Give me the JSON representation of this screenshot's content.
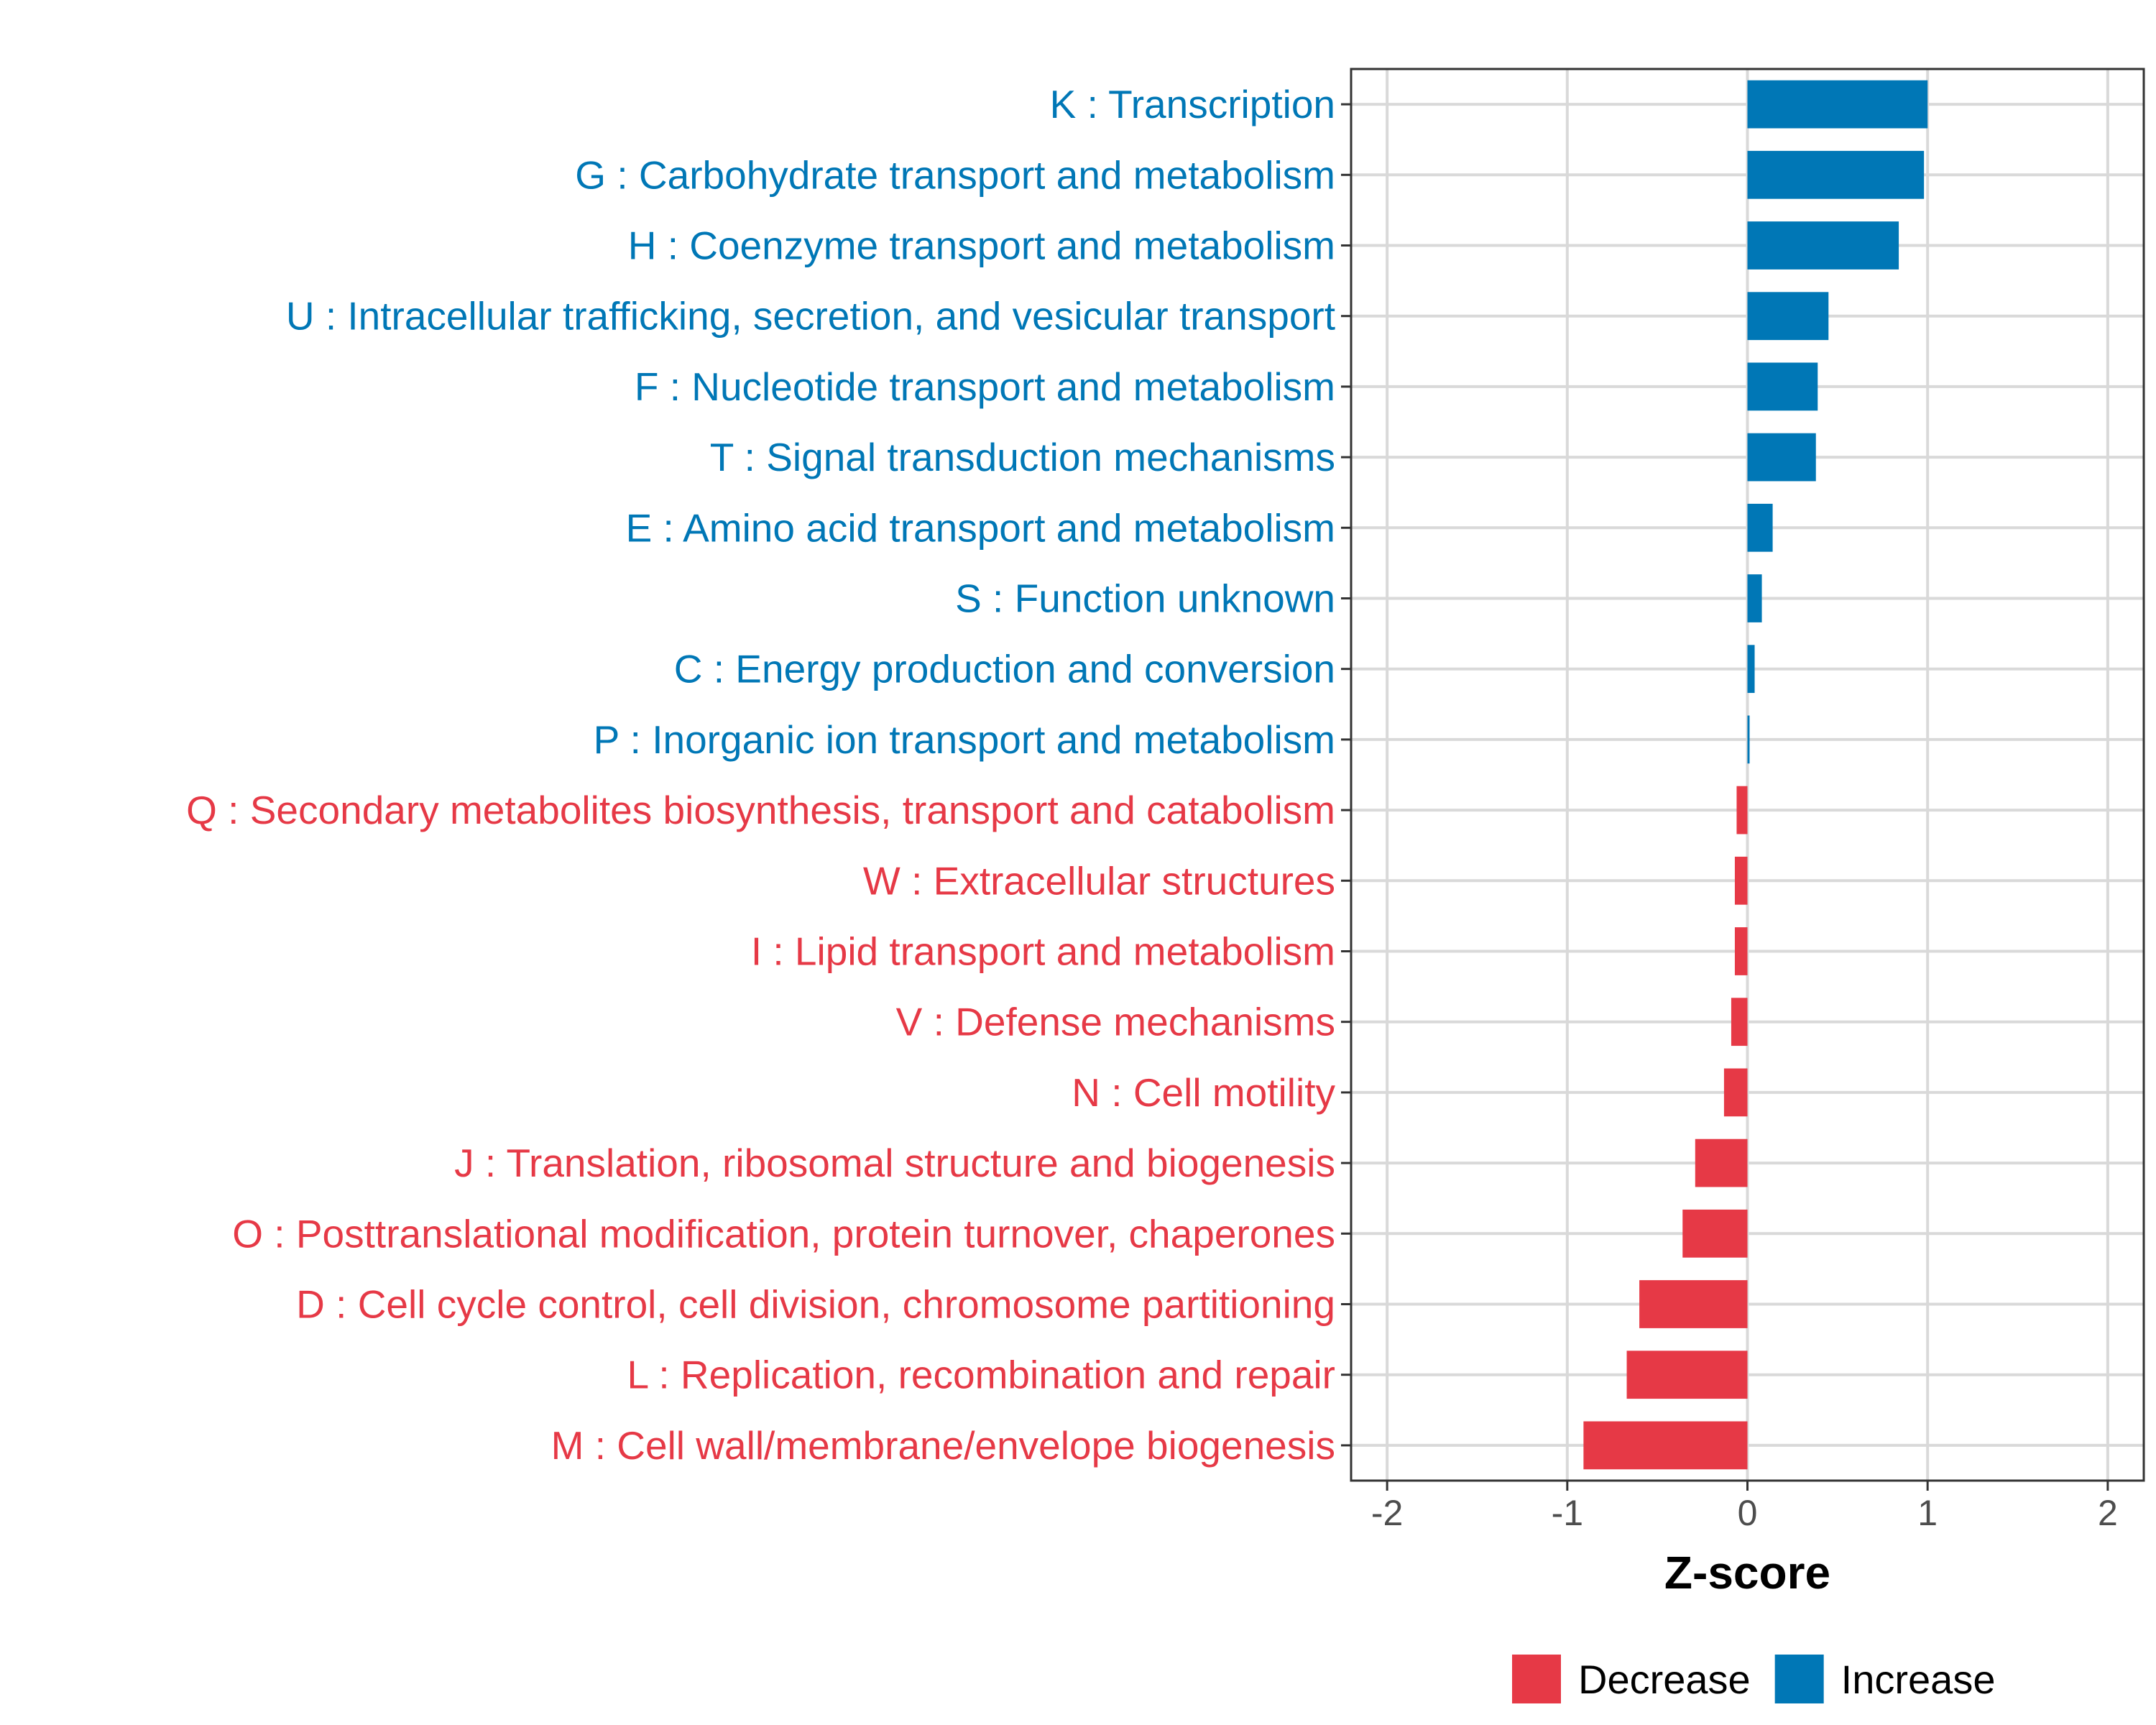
{
  "chart_data": {
    "type": "bar",
    "orientation": "horizontal",
    "xlabel": "Z-score",
    "ylabel": "",
    "xlim": [
      -2.2,
      2.2
    ],
    "xticks": [
      -2,
      -1,
      0,
      1,
      2
    ],
    "xtick_labels": [
      "-2",
      "-1",
      "0",
      "1",
      "2"
    ],
    "grid": true,
    "legend_position": "bottom-right",
    "legend": [
      {
        "name": "Decrease",
        "color": "#E63946"
      },
      {
        "name": "Increase",
        "color": "#0077B6"
      }
    ],
    "categories": [
      "K : Transcription",
      "G : Carbohydrate transport and metabolism",
      "H : Coenzyme transport and metabolism",
      "U : Intracellular trafficking, secretion, and vesicular transport",
      "F : Nucleotide transport and metabolism",
      "T : Signal transduction mechanisms",
      "E : Amino acid transport and metabolism",
      "S : Function unknown",
      "C : Energy production and conversion",
      "P : Inorganic ion transport and metabolism",
      "Q : Secondary metabolites biosynthesis, transport and catabolism",
      "W : Extracellular structures",
      "I : Lipid transport and metabolism",
      "V : Defense mechanisms",
      "N : Cell motility",
      "J : Translation, ribosomal structure and biogenesis",
      "O : Posttranslational modification, protein turnover, chaperones",
      "D : Cell cycle control, cell division, chromosome partitioning",
      "L : Replication, recombination and repair",
      "M : Cell wall/membrane/envelope biogenesis"
    ],
    "values": [
      1.0,
      0.98,
      0.84,
      0.45,
      0.39,
      0.38,
      0.14,
      0.08,
      0.04,
      0.01,
      -0.06,
      -0.07,
      -0.07,
      -0.09,
      -0.13,
      -0.29,
      -0.36,
      -0.6,
      -0.67,
      -0.91
    ],
    "groups": [
      "Increase",
      "Increase",
      "Increase",
      "Increase",
      "Increase",
      "Increase",
      "Increase",
      "Increase",
      "Increase",
      "Increase",
      "Decrease",
      "Decrease",
      "Decrease",
      "Decrease",
      "Decrease",
      "Decrease",
      "Decrease",
      "Decrease",
      "Decrease",
      "Decrease"
    ]
  }
}
